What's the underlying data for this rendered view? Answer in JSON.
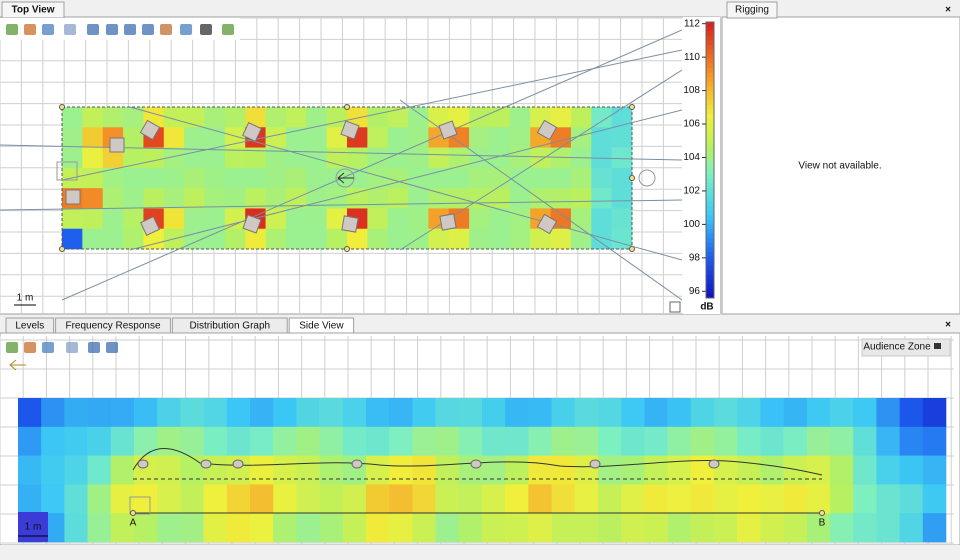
{
  "top_view": {
    "tab": "Top View",
    "scale_label": "1 m",
    "colorbar": {
      "unit": "dB",
      "range": [
        95.6,
        112.1
      ],
      "ticks": [
        96,
        98,
        100,
        102,
        104,
        106,
        108,
        110,
        112
      ]
    }
  },
  "rigging": {
    "tab": "Rigging",
    "message": "View not available."
  },
  "bottom_panel": {
    "tabs": [
      "Levels",
      "Frequency Response",
      "Distribution Graph",
      "Side View"
    ]
  },
  "side_view": {
    "button": "Audience Zone",
    "scale_label": "1 m",
    "points": [
      "A",
      "B"
    ]
  }
}
